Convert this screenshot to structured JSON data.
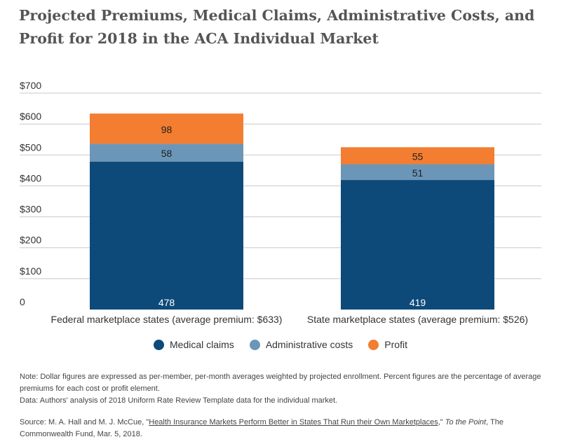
{
  "title": "Projected Premiums, Medical Claims, Administrative Costs, and Profit for 2018 in the ACA Individual Market",
  "chart_data": {
    "type": "bar",
    "stacked": true,
    "categories": [
      "Federal marketplace states (average premium: $633)",
      "State marketplace states (average premium: $526)"
    ],
    "series": [
      {
        "name": "Medical claims",
        "values": [
          478,
          419
        ],
        "color": "#0d4a7a",
        "label_color": "#ffffff"
      },
      {
        "name": "Administrative costs",
        "values": [
          58,
          51
        ],
        "color": "#6b96b7",
        "label_color": "#1f1f1f"
      },
      {
        "name": "Profit",
        "values": [
          98,
          55
        ],
        "color": "#f37d31",
        "label_color": "#1f1f1f"
      }
    ],
    "data_labels": [
      [
        "478",
        "419"
      ],
      [
        "58",
        "51"
      ],
      [
        "98",
        "55"
      ]
    ],
    "yticks": [
      0,
      100,
      200,
      300,
      400,
      500,
      600,
      700
    ],
    "ytick_labels": [
      "0",
      "$100",
      "$200",
      "$300",
      "$400",
      "$500",
      "$600",
      "$700"
    ],
    "ylim": [
      0,
      700
    ],
    "grid": true,
    "legend_position": "bottom-center"
  },
  "notes": {
    "note": "Note: Dollar figures are expressed as per-member, per-month averages weighted by projected enrollment. Percent figures are the percentage of average premiums for each cost or profit element.",
    "data": "Data: Authors' analysis of 2018 Uniform Rate Review Template data for the individual market.",
    "source_prefix": "Source: M. A. Hall and M. J. McCue, \"",
    "source_link": "Health Insurance Markets Perform Better in States That Run their Own Marketplaces",
    "source_mid": ",\" ",
    "source_pub": "To the Point",
    "source_suffix": ", The Commonwealth Fund, Mar. 5, 2018."
  }
}
